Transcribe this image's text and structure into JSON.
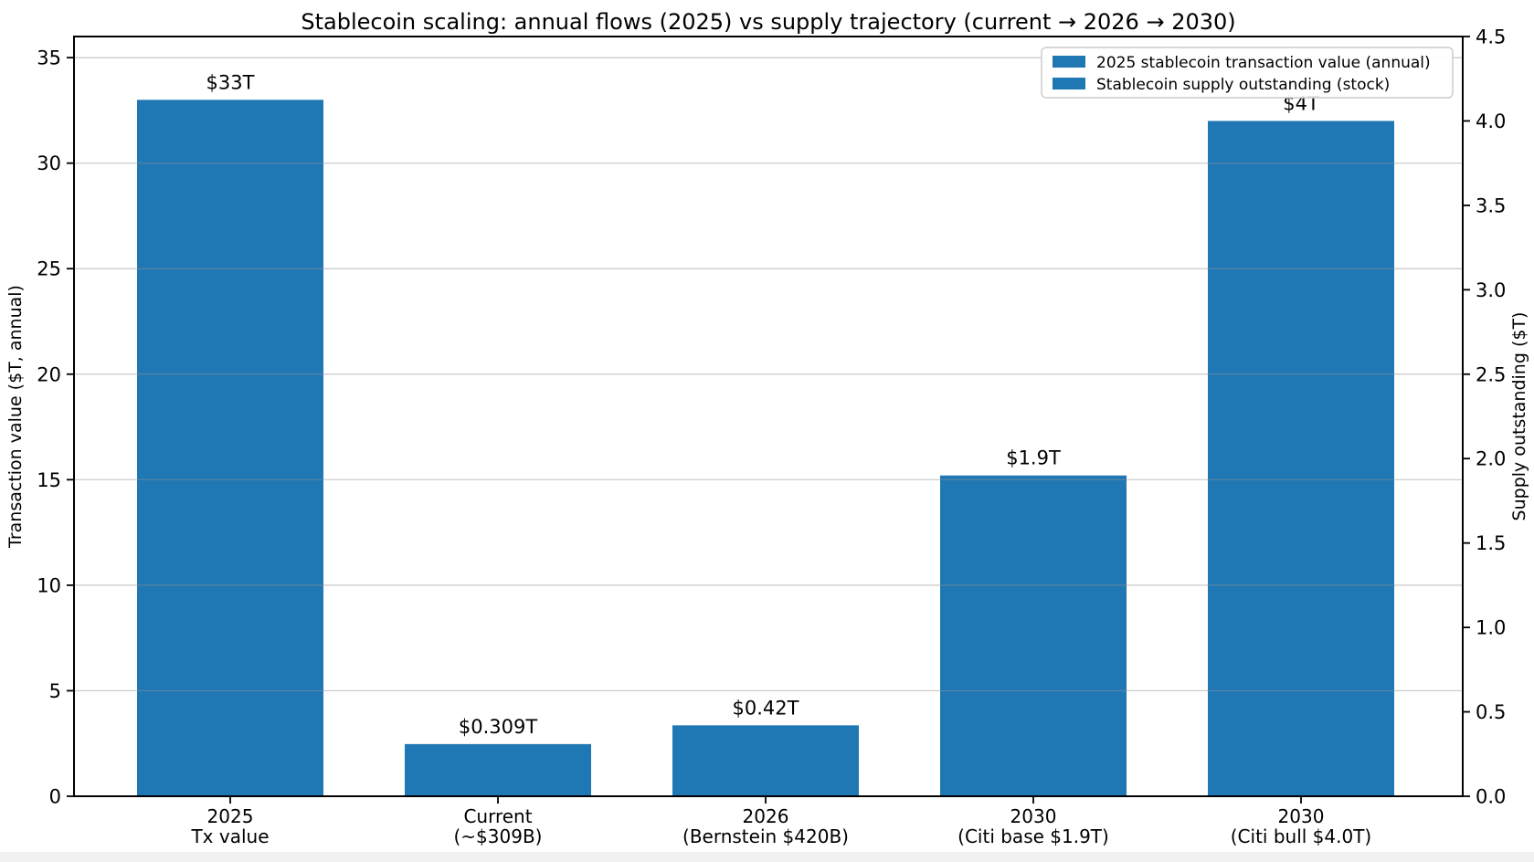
{
  "figure": {
    "title": "Stablecoin scaling: annual flows (2025) vs supply trajectory (current → 2026 → 2030)",
    "background": "#ffffff"
  },
  "axes": {
    "left": {
      "label": "Transaction value ($T, annual)",
      "tick_values": [
        0,
        5,
        10,
        15,
        20,
        25,
        30,
        35
      ],
      "tick_labels": [
        "0",
        "5",
        "10",
        "15",
        "20",
        "25",
        "30",
        "35"
      ]
    },
    "right": {
      "label": "Supply outstanding ($T)",
      "tick_values": [
        0,
        0.5,
        1.0,
        1.5,
        2.0,
        2.5,
        3.0,
        3.5,
        4.0,
        4.5
      ],
      "tick_labels": [
        "0.0",
        "0.5",
        "1.0",
        "1.5",
        "2.0",
        "2.5",
        "3.0",
        "3.5",
        "4.0",
        "4.5"
      ]
    }
  },
  "legend": {
    "items": [
      {
        "label": "2025 stablecoin transaction value (annual)",
        "color": "#1f77b4"
      },
      {
        "label": "Stablecoin supply outstanding (stock)",
        "color": "#1f77b4"
      }
    ],
    "position": "upper right"
  },
  "chart_data": {
    "type": "bar",
    "bar_color": "#1f77b4",
    "grid": "horizontal, at left-axis ticks, drawn over bars",
    "legend_position": "upper right",
    "title": "Stablecoin scaling: annual flows (2025) vs supply trajectory (current → 2026 → 2030)",
    "ylabel_left": "Transaction value ($T, annual)",
    "ylabel_right": "Supply outstanding ($T)",
    "ylim_left": [
      0,
      36
    ],
    "ylim_right": [
      0,
      4.5
    ],
    "categories": [
      [
        "2025",
        "Tx value"
      ],
      [
        "Current",
        "(~$309B)"
      ],
      [
        "2026",
        "(Bernstein $420B)"
      ],
      [
        "2030",
        "(Citi base $1.9T)"
      ],
      [
        "2030",
        "(Citi bull $4.0T)"
      ]
    ],
    "bars": [
      {
        "category": "2025 Tx value",
        "value": 33,
        "axis": "left",
        "data_label": "$33T"
      },
      {
        "category": "Current (~$309B)",
        "value": 0.309,
        "axis": "right",
        "data_label": "$0.309T"
      },
      {
        "category": "2026 (Bernstein $420B)",
        "value": 0.42,
        "axis": "right",
        "data_label": "$0.42T"
      },
      {
        "category": "2030 (Citi base $1.9T)",
        "value": 1.9,
        "axis": "right",
        "data_label": "$1.9T"
      },
      {
        "category": "2030 (Citi bull $4.0T)",
        "value": 4.0,
        "axis": "right",
        "data_label": "$4T"
      }
    ],
    "series": [
      {
        "name": "2025 stablecoin transaction value (annual)",
        "axis": "left",
        "values": [
          33,
          null,
          null,
          null,
          null
        ]
      },
      {
        "name": "Stablecoin supply outstanding (stock)",
        "axis": "right",
        "values": [
          null,
          0.309,
          0.42,
          1.9,
          4.0
        ]
      }
    ]
  }
}
